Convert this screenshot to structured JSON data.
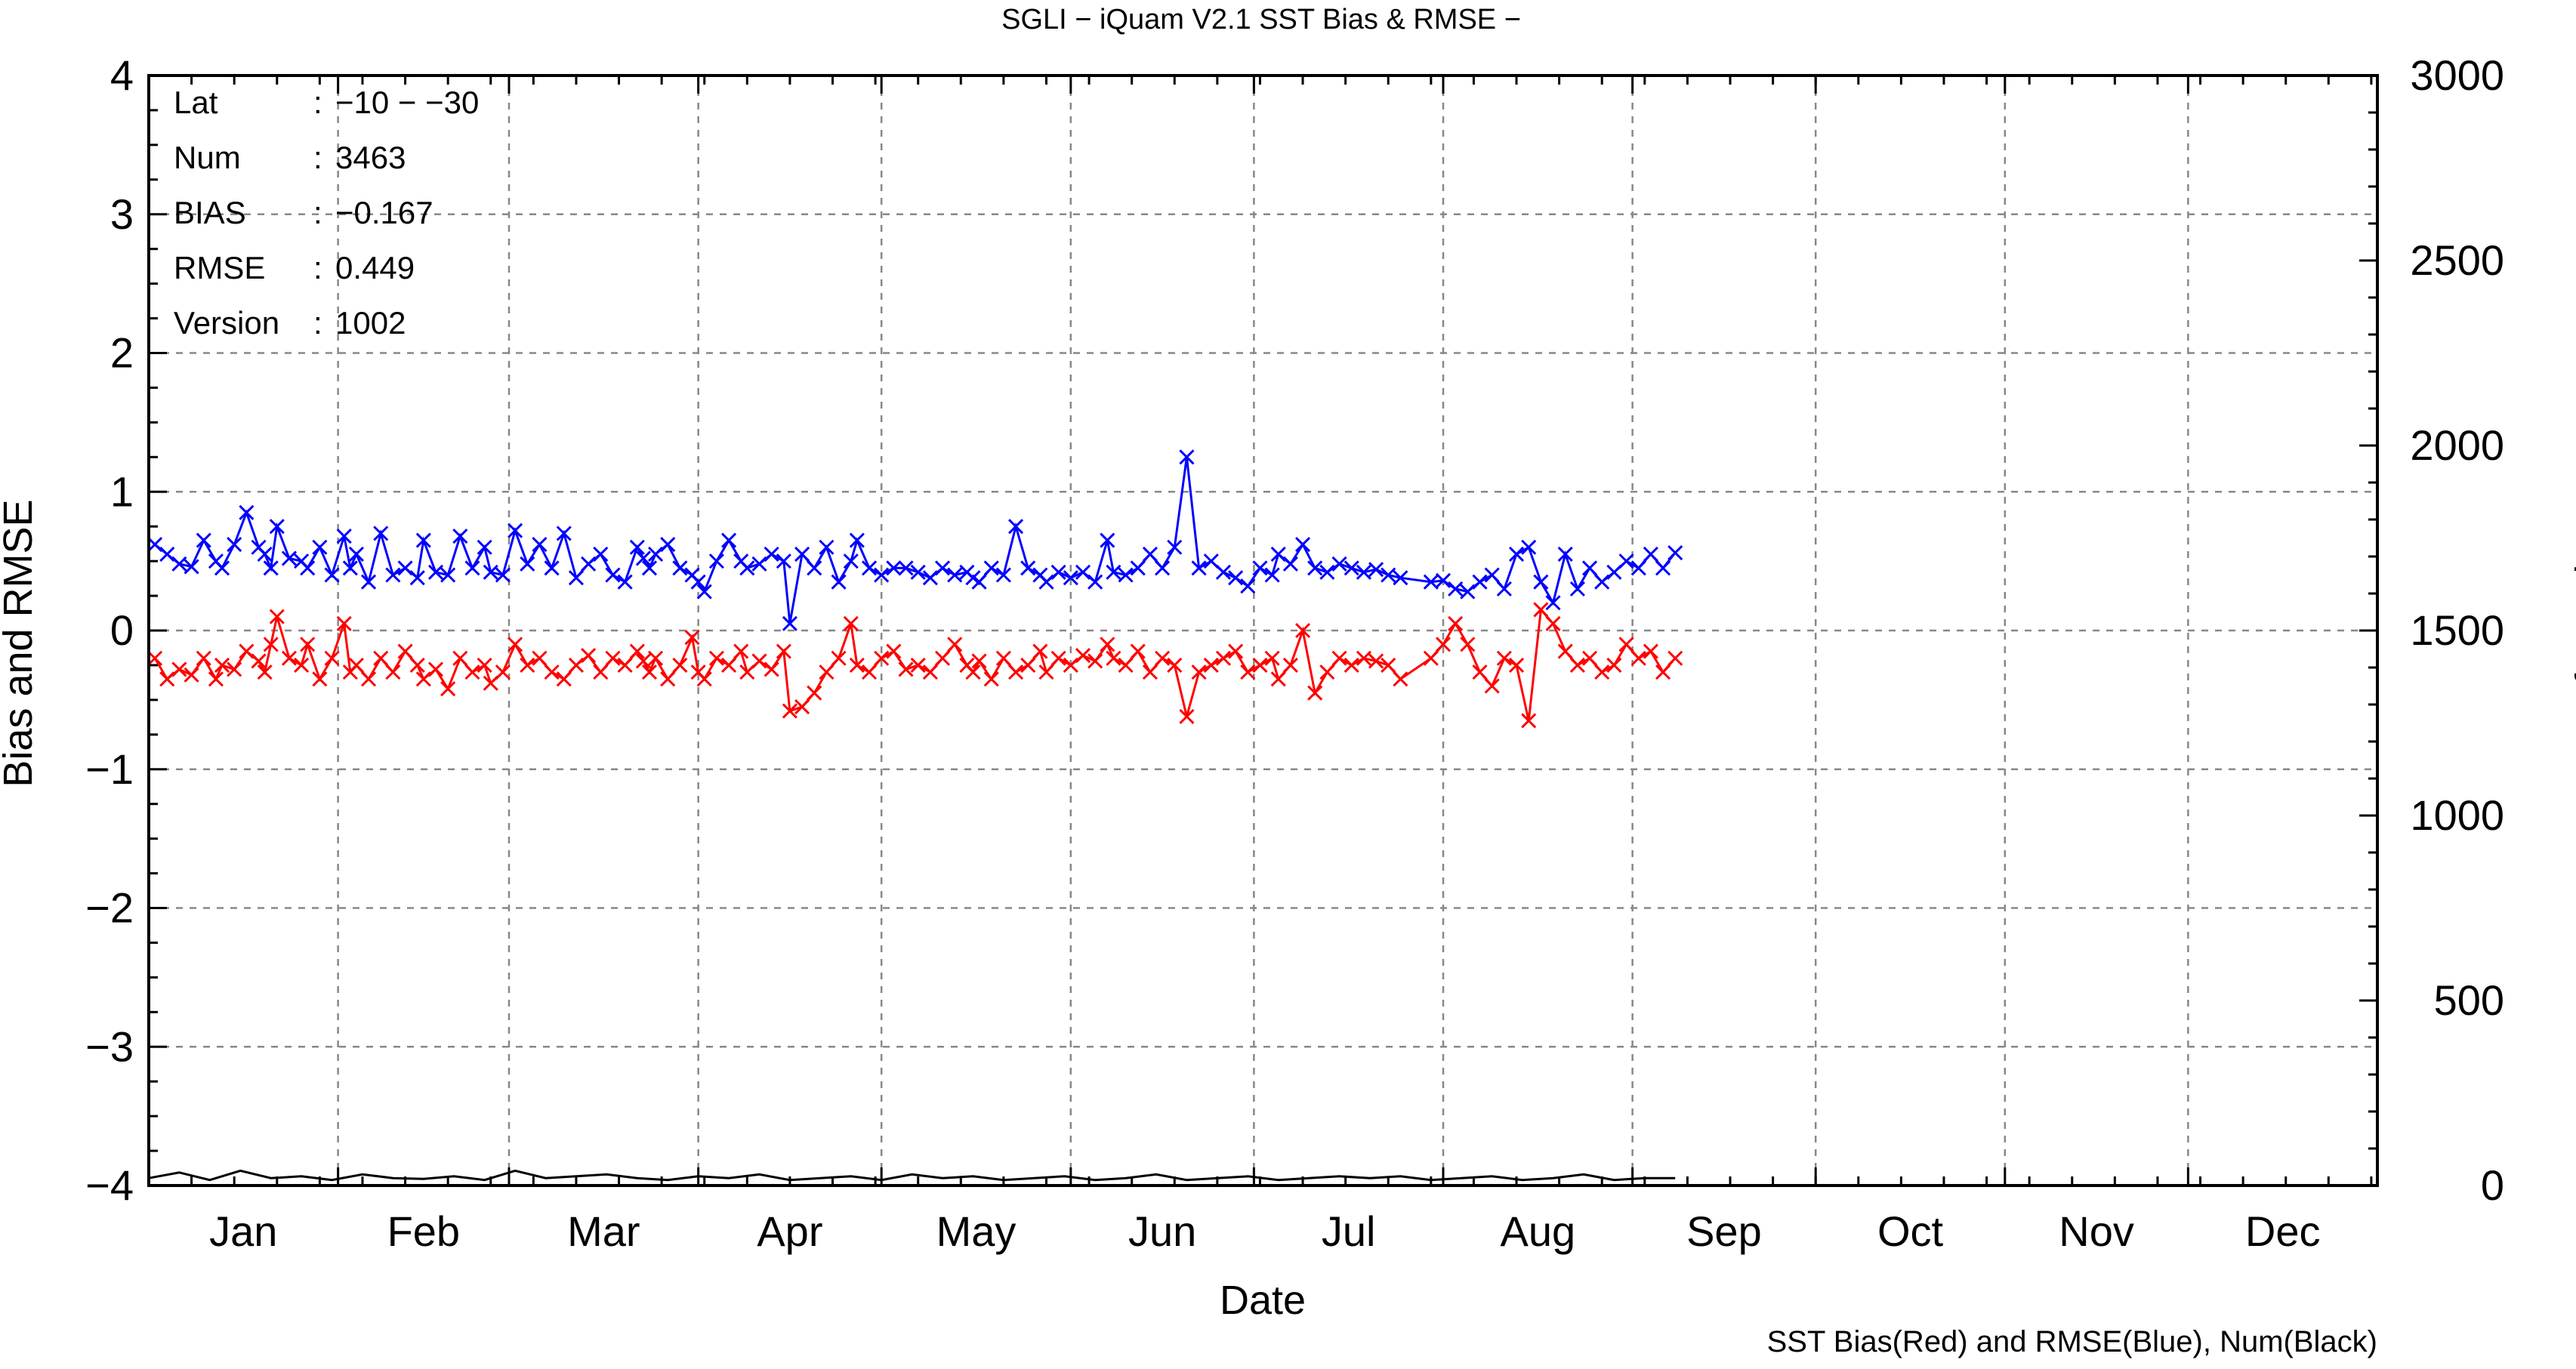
{
  "chart_data": {
    "type": "line",
    "title": "SGLI − iQuam V2.1 SST Bias & RMSE  −",
    "xlabel": "Date",
    "ylabel_left": "Bias and RMSE",
    "ylabel_right": "Num of Match−up",
    "footer": "SST Bias(Red) and RMSE(Blue), Num(Black)",
    "months": [
      "Jan",
      "Feb",
      "Mar",
      "Apr",
      "May",
      "Jun",
      "Jul",
      "Aug",
      "Sep",
      "Oct",
      "Nov",
      "Dec"
    ],
    "xlim_days": [
      0,
      365
    ],
    "ylim_left": [
      -4,
      4
    ],
    "ylim_right": [
      0,
      3000
    ],
    "yticks_left": [
      "4",
      "3",
      "2",
      "1",
      "0",
      "−1",
      "−2",
      "−3",
      "−4"
    ],
    "yticks_right": [
      "3000",
      "2500",
      "2000",
      "1500",
      "1000",
      "500",
      "0"
    ],
    "grid": true,
    "info": [
      {
        "key": "Lat",
        "sep": ":",
        "val": "−10 − −30"
      },
      {
        "key": "Num",
        "sep": ":",
        "val": "3463"
      },
      {
        "key": "BIAS",
        "sep": ":",
        "val": "−0.167"
      },
      {
        "key": "RMSE",
        "sep": ":",
        "val": "0.449"
      },
      {
        "key": "Version",
        "sep": ":",
        "val": "1002"
      }
    ],
    "series": [
      {
        "name": "RMSE",
        "color": "#0000ff",
        "axis": "left",
        "x": [
          1,
          3,
          5,
          7,
          9,
          11,
          12,
          14,
          16,
          18,
          19,
          20,
          21,
          23,
          25,
          26,
          28,
          30,
          32,
          33,
          34,
          36,
          38,
          40,
          42,
          44,
          45,
          47,
          49,
          51,
          53,
          55,
          56,
          58,
          60,
          62,
          64,
          66,
          68,
          70,
          72,
          74,
          76,
          78,
          80,
          81,
          82,
          83,
          85,
          87,
          89,
          90,
          91,
          93,
          95,
          97,
          98,
          100,
          102,
          104,
          105,
          107,
          109,
          111,
          113,
          115,
          116,
          118,
          120,
          122,
          124,
          126,
          128,
          130,
          132,
          134,
          135,
          136,
          138,
          140,
          142,
          144,
          146,
          147,
          149,
          151,
          153,
          155,
          157,
          158,
          160,
          162,
          164,
          166,
          168,
          170,
          172,
          174,
          176,
          178,
          180,
          182,
          184,
          185,
          187,
          189,
          191,
          193,
          195,
          197,
          199,
          201,
          203,
          205,
          210,
          212,
          214,
          216,
          218,
          220,
          222,
          224,
          226,
          228,
          230,
          232,
          234,
          236,
          238,
          240,
          242,
          244,
          246,
          248,
          250
        ],
        "y": [
          0.62,
          0.55,
          0.48,
          0.46,
          0.65,
          0.5,
          0.45,
          0.62,
          0.85,
          0.6,
          0.55,
          0.45,
          0.75,
          0.52,
          0.5,
          0.45,
          0.6,
          0.4,
          0.68,
          0.45,
          0.55,
          0.35,
          0.7,
          0.4,
          0.45,
          0.38,
          0.65,
          0.42,
          0.4,
          0.68,
          0.45,
          0.6,
          0.42,
          0.4,
          0.72,
          0.48,
          0.62,
          0.45,
          0.7,
          0.38,
          0.48,
          0.55,
          0.4,
          0.35,
          0.6,
          0.52,
          0.45,
          0.55,
          0.62,
          0.45,
          0.4,
          0.35,
          0.28,
          0.5,
          0.65,
          0.5,
          0.45,
          0.48,
          0.55,
          0.5,
          0.05,
          0.55,
          0.45,
          0.6,
          0.35,
          0.5,
          0.65,
          0.45,
          0.4,
          0.45,
          0.45,
          0.42,
          0.38,
          0.45,
          0.4,
          0.42,
          0.38,
          0.35,
          0.45,
          0.4,
          0.75,
          0.45,
          0.4,
          0.35,
          0.42,
          0.38,
          0.42,
          0.35,
          0.65,
          0.42,
          0.4,
          0.45,
          0.55,
          0.45,
          0.6,
          1.25,
          0.45,
          0.5,
          0.42,
          0.38,
          0.32,
          0.45,
          0.4,
          0.55,
          0.48,
          0.62,
          0.45,
          0.42,
          0.48,
          0.45,
          0.42,
          0.44,
          0.4,
          0.38,
          0.35,
          0.36,
          0.3,
          0.28,
          0.35,
          0.4,
          0.3,
          0.55,
          0.6,
          0.35,
          0.2,
          0.55,
          0.3,
          0.45,
          0.35,
          0.42,
          0.5,
          0.45,
          0.55,
          0.45,
          0.56
        ]
      },
      {
        "name": "Bias",
        "color": "#ff0000",
        "axis": "left",
        "x": [
          1,
          3,
          5,
          7,
          9,
          11,
          12,
          14,
          16,
          18,
          19,
          20,
          21,
          23,
          25,
          26,
          28,
          30,
          32,
          33,
          34,
          36,
          38,
          40,
          42,
          44,
          45,
          47,
          49,
          51,
          53,
          55,
          56,
          58,
          60,
          62,
          64,
          66,
          68,
          70,
          72,
          74,
          76,
          78,
          80,
          81,
          82,
          83,
          85,
          87,
          89,
          90,
          91,
          93,
          95,
          97,
          98,
          100,
          102,
          104,
          105,
          107,
          109,
          111,
          113,
          115,
          116,
          118,
          120,
          122,
          124,
          126,
          128,
          130,
          132,
          134,
          135,
          136,
          138,
          140,
          142,
          144,
          146,
          147,
          149,
          151,
          153,
          155,
          157,
          158,
          160,
          162,
          164,
          166,
          168,
          170,
          172,
          174,
          176,
          178,
          180,
          182,
          184,
          185,
          187,
          189,
          191,
          193,
          195,
          197,
          199,
          201,
          203,
          205,
          210,
          212,
          214,
          216,
          218,
          220,
          222,
          224,
          226,
          228,
          230,
          232,
          234,
          236,
          238,
          240,
          242,
          244,
          246,
          248,
          250
        ],
        "y": [
          -0.2,
          -0.35,
          -0.28,
          -0.32,
          -0.2,
          -0.35,
          -0.25,
          -0.28,
          -0.15,
          -0.22,
          -0.3,
          -0.1,
          0.1,
          -0.2,
          -0.25,
          -0.1,
          -0.35,
          -0.2,
          0.05,
          -0.3,
          -0.25,
          -0.35,
          -0.2,
          -0.3,
          -0.15,
          -0.25,
          -0.35,
          -0.28,
          -0.42,
          -0.2,
          -0.3,
          -0.25,
          -0.38,
          -0.3,
          -0.1,
          -0.25,
          -0.2,
          -0.3,
          -0.35,
          -0.25,
          -0.18,
          -0.3,
          -0.2,
          -0.25,
          -0.15,
          -0.22,
          -0.3,
          -0.2,
          -0.35,
          -0.25,
          -0.05,
          -0.3,
          -0.35,
          -0.2,
          -0.25,
          -0.15,
          -0.3,
          -0.22,
          -0.28,
          -0.15,
          -0.58,
          -0.55,
          -0.45,
          -0.3,
          -0.2,
          0.05,
          -0.25,
          -0.3,
          -0.2,
          -0.15,
          -0.28,
          -0.25,
          -0.3,
          -0.2,
          -0.1,
          -0.25,
          -0.3,
          -0.22,
          -0.35,
          -0.2,
          -0.3,
          -0.25,
          -0.15,
          -0.3,
          -0.2,
          -0.25,
          -0.18,
          -0.22,
          -0.1,
          -0.2,
          -0.25,
          -0.15,
          -0.3,
          -0.2,
          -0.25,
          -0.62,
          -0.3,
          -0.25,
          -0.2,
          -0.15,
          -0.3,
          -0.25,
          -0.2,
          -0.35,
          -0.25,
          0.0,
          -0.45,
          -0.3,
          -0.2,
          -0.25,
          -0.2,
          -0.22,
          -0.25,
          -0.35,
          -0.2,
          -0.1,
          0.05,
          -0.1,
          -0.3,
          -0.4,
          -0.2,
          -0.25,
          -0.65,
          0.15,
          0.05,
          -0.15,
          -0.25,
          -0.2,
          -0.3,
          -0.25,
          -0.1,
          -0.2,
          -0.15,
          -0.3,
          -0.2
        ]
      },
      {
        "name": "Num",
        "color": "#000000",
        "axis": "right",
        "x": [
          0,
          5,
          10,
          15,
          20,
          25,
          30,
          35,
          40,
          45,
          50,
          55,
          60,
          65,
          70,
          75,
          80,
          85,
          90,
          95,
          100,
          105,
          110,
          115,
          120,
          125,
          130,
          135,
          140,
          145,
          150,
          155,
          160,
          165,
          170,
          175,
          180,
          185,
          190,
          195,
          200,
          205,
          210,
          215,
          220,
          225,
          230,
          235,
          240,
          245,
          250
        ],
        "y": [
          20,
          35,
          15,
          40,
          20,
          25,
          15,
          30,
          20,
          18,
          25,
          15,
          40,
          20,
          25,
          30,
          20,
          15,
          25,
          20,
          30,
          15,
          20,
          25,
          15,
          30,
          20,
          25,
          15,
          20,
          25,
          15,
          20,
          30,
          15,
          20,
          25,
          15,
          20,
          25,
          20,
          25,
          15,
          20,
          25,
          15,
          20,
          30,
          15,
          20,
          20
        ]
      }
    ]
  }
}
